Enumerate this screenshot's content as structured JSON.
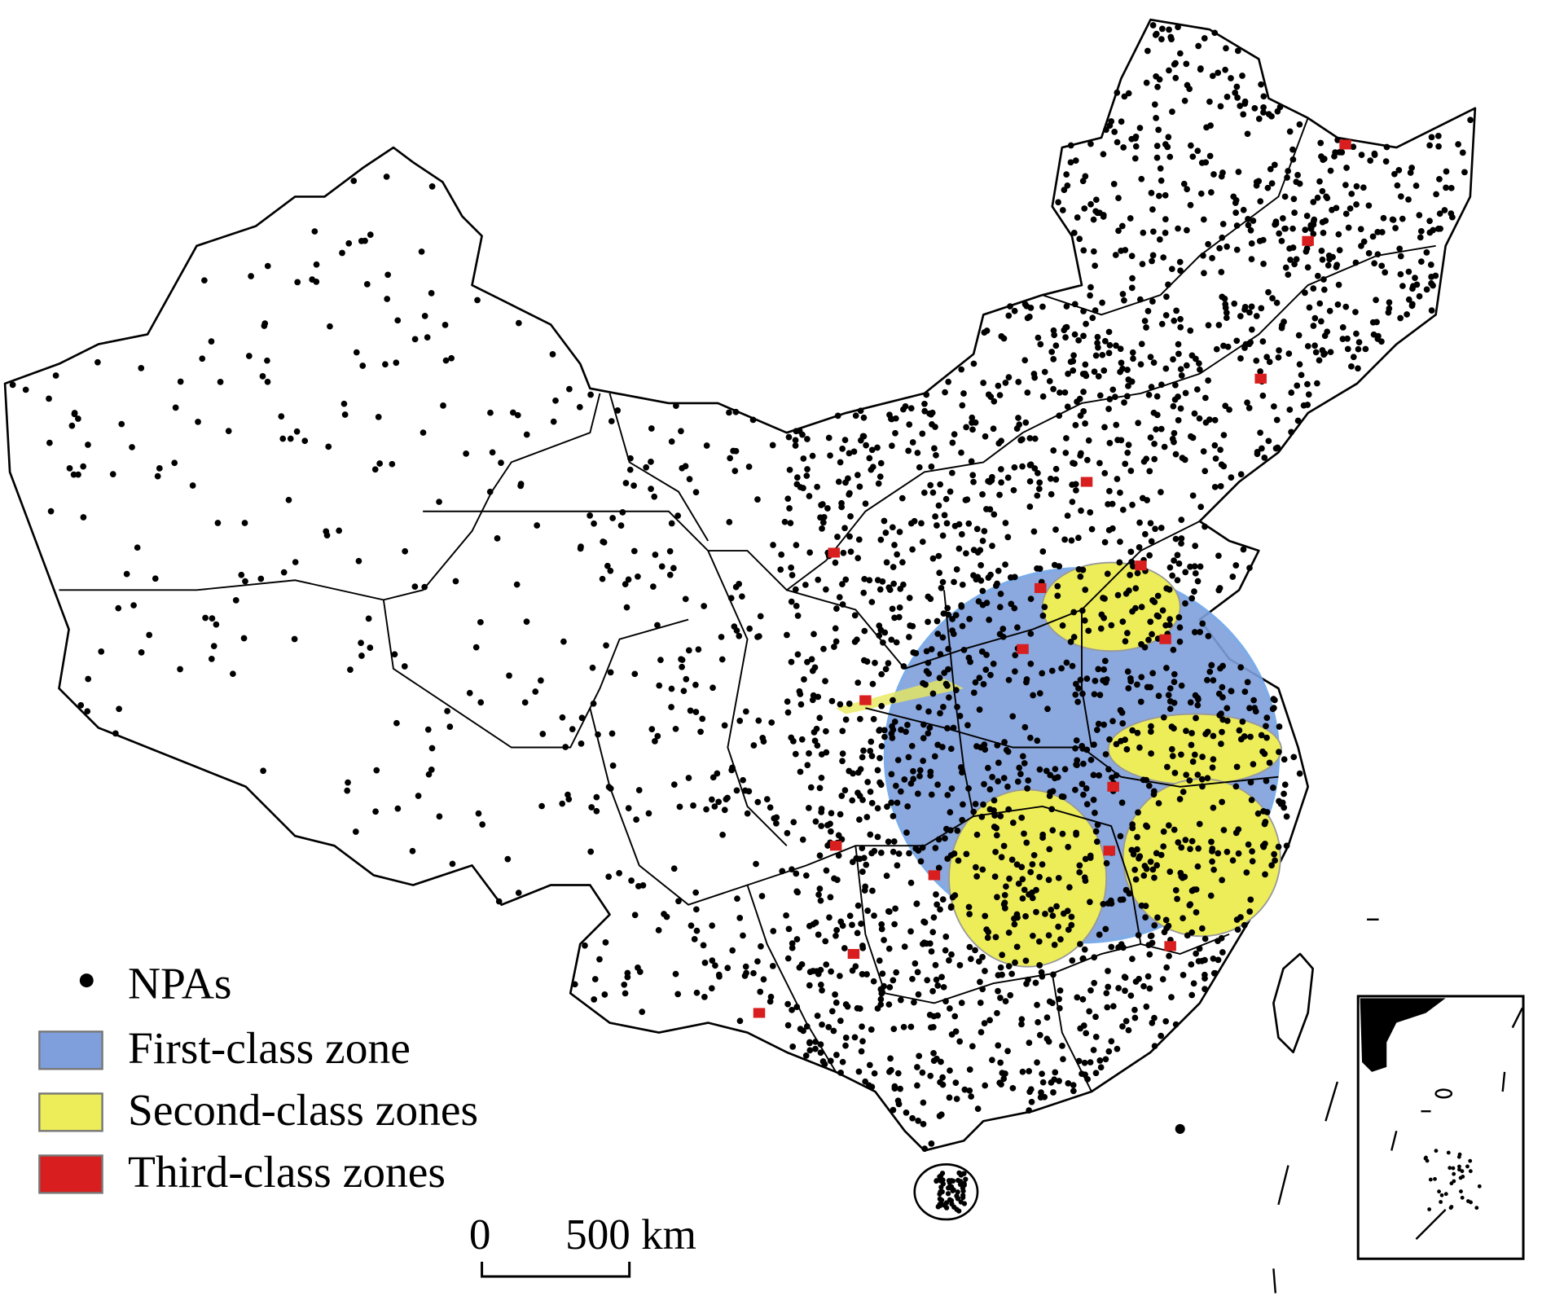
{
  "legend": {
    "items": [
      {
        "label": "NPAs"
      },
      {
        "label": "First-class zone"
      },
      {
        "label": "Second-class zones"
      },
      {
        "label": "Third-class zones"
      }
    ]
  },
  "scale_bar": {
    "start": "0",
    "end": "500 km"
  }
}
